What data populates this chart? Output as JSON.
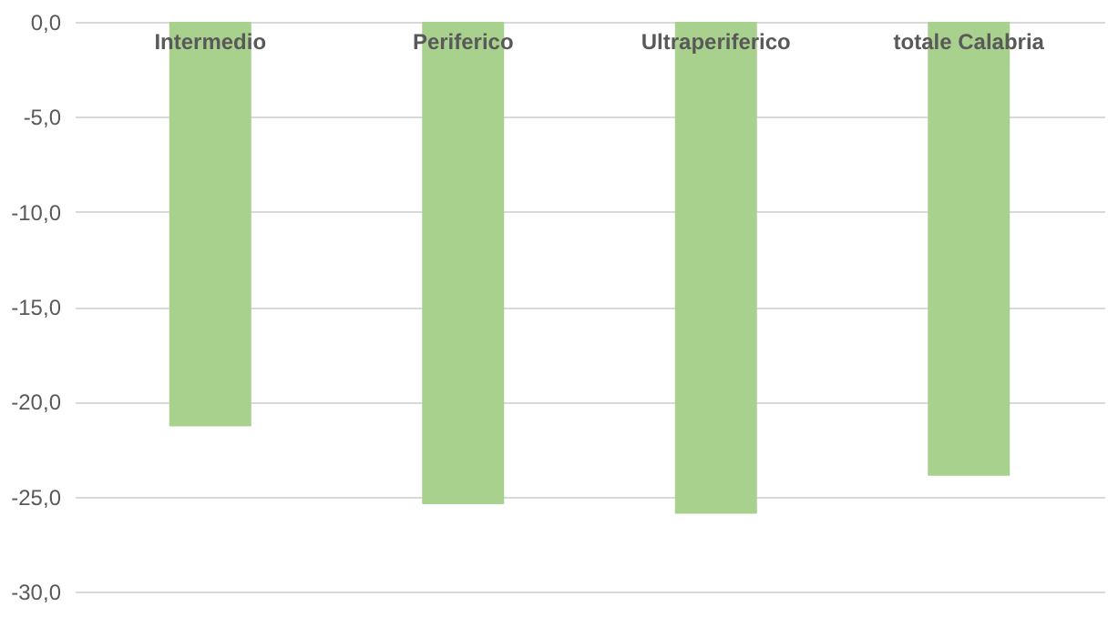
{
  "chart_data": {
    "type": "bar",
    "categories": [
      "Intermedio",
      "Periferico",
      "Ultraperiferico",
      "totale Calabria"
    ],
    "values": [
      -21.3,
      -25.4,
      -25.9,
      -23.9
    ],
    "color": "#a9d18e",
    "ylim": [
      -30,
      0
    ],
    "yticks": [
      {
        "value": 0,
        "label": "0,0"
      },
      {
        "value": -5,
        "label": "-5,0"
      },
      {
        "value": -10,
        "label": "-10,0"
      },
      {
        "value": -15,
        "label": "-15,0"
      },
      {
        "value": -20,
        "label": "-20,0"
      },
      {
        "value": -25,
        "label": "-25,0"
      },
      {
        "value": -30,
        "label": "-30,0"
      }
    ],
    "grid": "y"
  }
}
